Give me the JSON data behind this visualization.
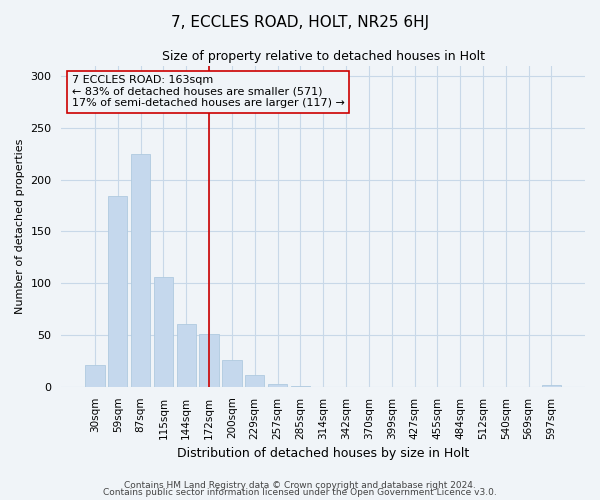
{
  "title": "7, ECCLES ROAD, HOLT, NR25 6HJ",
  "subtitle": "Size of property relative to detached houses in Holt",
  "xlabel": "Distribution of detached houses by size in Holt",
  "ylabel": "Number of detached properties",
  "bar_labels": [
    "30sqm",
    "59sqm",
    "87sqm",
    "115sqm",
    "144sqm",
    "172sqm",
    "200sqm",
    "229sqm",
    "257sqm",
    "285sqm",
    "314sqm",
    "342sqm",
    "370sqm",
    "399sqm",
    "427sqm",
    "455sqm",
    "484sqm",
    "512sqm",
    "540sqm",
    "569sqm",
    "597sqm"
  ],
  "bar_values": [
    21,
    184,
    225,
    106,
    61,
    51,
    26,
    11,
    3,
    1,
    0,
    0,
    0,
    0,
    0,
    0,
    0,
    0,
    0,
    0,
    2
  ],
  "bar_color": "#c5d8ed",
  "bar_edge_color": "#b0cae0",
  "vline_x": 5,
  "vline_color": "#cc0000",
  "annotation_text": "7 ECCLES ROAD: 163sqm\n← 83% of detached houses are smaller (571)\n17% of semi-detached houses are larger (117) →",
  "annotation_box_edgecolor": "#cc0000",
  "ylim": [
    0,
    310
  ],
  "yticks": [
    0,
    50,
    100,
    150,
    200,
    250,
    300
  ],
  "footer1": "Contains HM Land Registry data © Crown copyright and database right 2024.",
  "footer2": "Contains public sector information licensed under the Open Government Licence v3.0.",
  "bg_color": "#f0f4f8",
  "grid_color": "#c8d8e8"
}
